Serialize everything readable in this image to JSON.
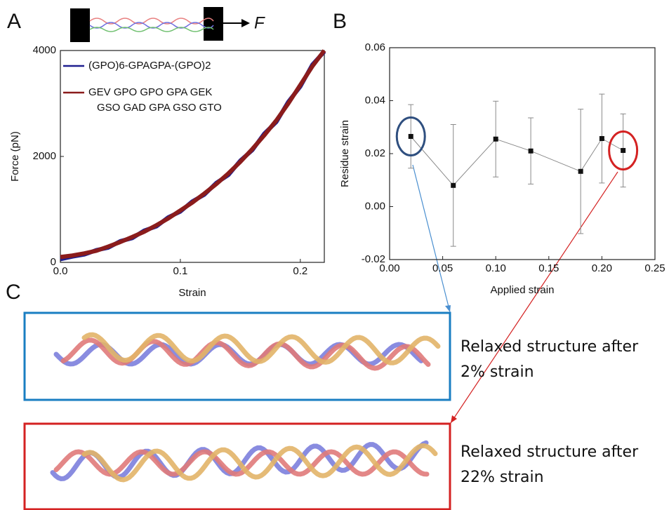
{
  "panel_labels": [
    "A",
    "B",
    "C"
  ],
  "schematic": {
    "force_label": "F"
  },
  "chart_data": [
    {
      "type": "line",
      "x": [
        0,
        0.01,
        0.02,
        0.03,
        0.04,
        0.05,
        0.06,
        0.07,
        0.08,
        0.09,
        0.1,
        0.11,
        0.12,
        0.13,
        0.14,
        0.15,
        0.16,
        0.17,
        0.18,
        0.19,
        0.2,
        0.21,
        0.22
      ],
      "series": [
        {
          "name": "(GPO)6-GPAGPA-(GPO)2",
          "color": "#1f1f8f",
          "values": [
            60,
            110,
            150,
            230,
            280,
            400,
            460,
            600,
            680,
            850,
            960,
            1150,
            1280,
            1500,
            1650,
            1920,
            2120,
            2430,
            2650,
            3030,
            3320,
            3730,
            3980
          ]
        },
        {
          "name": "GEV GPO GPO GPA GEK\nGSO GAD GPA GSO GTO",
          "color": "#8b1c1c",
          "values": [
            100,
            130,
            170,
            220,
            300,
            385,
            480,
            580,
            700,
            830,
            980,
            1130,
            1300,
            1480,
            1680,
            1900,
            2140,
            2400,
            2680,
            3000,
            3350,
            3700,
            4000
          ]
        }
      ],
      "xlabel": "Strain",
      "ylabel": "Force (pN)",
      "xlim": [
        0,
        0.22
      ],
      "ylim": [
        0,
        4000
      ],
      "xticks": [
        {
          "value": 0,
          "label": "0.0"
        },
        0.1,
        0.2
      ],
      "yticks": [
        0,
        2000,
        4000
      ],
      "legend": "upper left"
    },
    {
      "type": "errorbar",
      "x": [
        0.02,
        0.06,
        0.1,
        0.133,
        0.18,
        0.2,
        0.22
      ],
      "values": [
        0.0265,
        0.008,
        0.0255,
        0.021,
        0.0133,
        0.0257,
        0.0212
      ],
      "errors": [
        0.012,
        0.023,
        0.0143,
        0.0125,
        0.0235,
        0.0168,
        0.0138
      ],
      "color": "#111111",
      "line_color": "#8a8a8a",
      "xlabel": "Applied strain",
      "ylabel": "Residue strain",
      "xlim": [
        0,
        0.25
      ],
      "ylim": [
        -0.02,
        0.06
      ],
      "xticks": [
        {
          "value": 0,
          "label": "0.00"
        },
        0.05,
        {
          "value": 0.1,
          "label": "0.10"
        },
        0.15,
        {
          "value": 0.2,
          "label": "0.20"
        },
        0.25
      ],
      "yticks": [
        -0.02,
        {
          "value": 0,
          "label": "0.00"
        },
        0.02,
        0.04,
        0.06
      ]
    }
  ],
  "structures": [
    {
      "caption": [
        "Relaxed structure after",
        "2% strain"
      ],
      "color": "#1a7ec2"
    },
    {
      "caption": [
        "Relaxed structure after",
        "22% strain"
      ],
      "color": "#d42222"
    }
  ]
}
